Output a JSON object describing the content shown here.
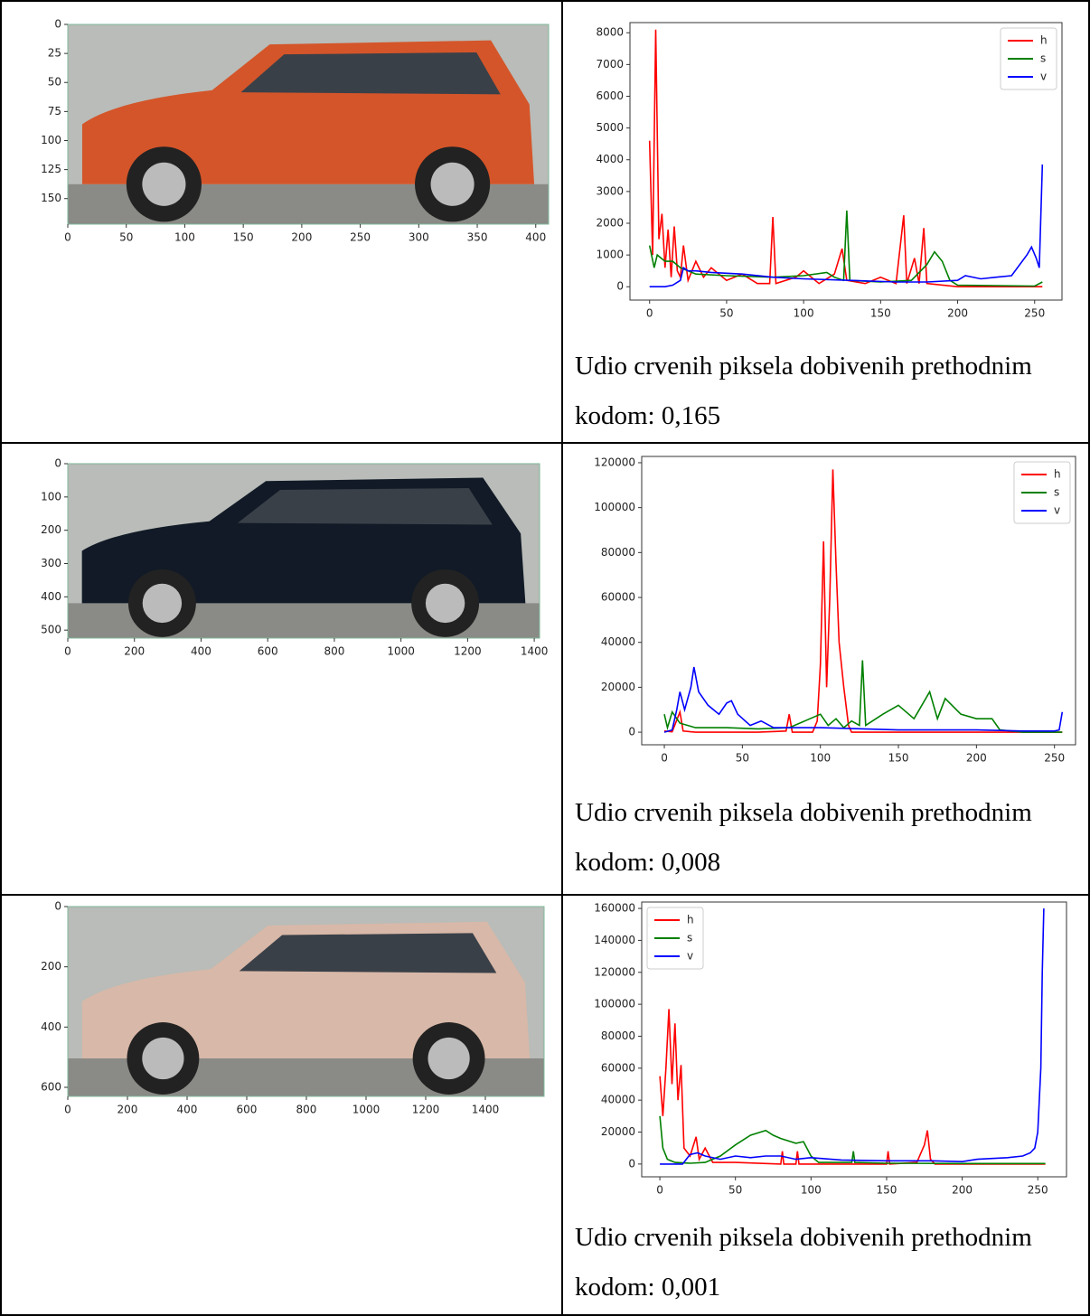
{
  "chart_data": [
    {
      "type": "image",
      "color": "#d4552a",
      "xlim": [
        0,
        411
      ],
      "ylim": [
        172,
        0
      ],
      "xticks": [
        0,
        50,
        100,
        150,
        200,
        250,
        300,
        350,
        400
      ],
      "yticks": [
        0,
        25,
        50,
        75,
        100,
        125,
        150
      ]
    },
    {
      "type": "line",
      "legend": "upper right",
      "xlim": [
        -12.75,
        267.75
      ],
      "ylim": [
        -420,
        8320
      ],
      "xticks": [
        0,
        50,
        100,
        150,
        200,
        250
      ],
      "yticks": [
        0,
        1000,
        2000,
        3000,
        4000,
        5000,
        6000,
        7000,
        8000
      ],
      "series": [
        {
          "name": "h",
          "color": "#ff0000",
          "x": [
            0,
            2,
            4,
            6,
            8,
            10,
            12,
            14,
            16,
            18,
            20,
            22,
            25,
            30,
            35,
            40,
            50,
            60,
            70,
            78,
            80,
            82,
            95,
            100,
            110,
            120,
            125,
            128,
            140,
            150,
            160,
            165,
            167,
            172,
            175,
            178,
            180,
            200,
            255
          ],
          "values": [
            4600,
            1000,
            8100,
            1500,
            2300,
            600,
            1800,
            300,
            1900,
            500,
            300,
            1300,
            200,
            800,
            300,
            600,
            200,
            400,
            100,
            100,
            2200,
            100,
            300,
            500,
            100,
            400,
            1200,
            200,
            100,
            300,
            100,
            2250,
            100,
            900,
            100,
            1850,
            100,
            0,
            0
          ]
        },
        {
          "name": "s",
          "color": "#008000",
          "x": [
            0,
            3,
            5,
            10,
            15,
            20,
            30,
            50,
            80,
            100,
            115,
            120,
            126,
            128,
            130,
            150,
            170,
            180,
            185,
            190,
            195,
            200,
            250,
            255
          ],
          "values": [
            1300,
            600,
            1000,
            800,
            800,
            600,
            400,
            350,
            300,
            350,
            450,
            300,
            200,
            2400,
            200,
            150,
            200,
            700,
            1100,
            800,
            200,
            50,
            20,
            150
          ]
        },
        {
          "name": "v",
          "color": "#0000ff",
          "x": [
            0,
            10,
            15,
            20,
            22,
            25,
            30,
            40,
            60,
            80,
            100,
            130,
            160,
            180,
            200,
            205,
            215,
            225,
            235,
            245,
            248,
            251,
            253,
            255
          ],
          "values": [
            0,
            0,
            50,
            200,
            600,
            500,
            500,
            450,
            400,
            300,
            250,
            200,
            150,
            150,
            200,
            350,
            250,
            300,
            350,
            1000,
            1250,
            900,
            600,
            3850
          ]
        }
      ]
    },
    {
      "type": "image",
      "color": "#111a26",
      "xlim": [
        0,
        1416
      ],
      "ylim": [
        524,
        0
      ],
      "xticks": [
        0,
        200,
        400,
        600,
        800,
        1000,
        1200,
        1400
      ],
      "yticks": [
        0,
        100,
        200,
        300,
        400,
        500
      ]
    },
    {
      "type": "line",
      "legend": "upper right",
      "xlim": [
        -14.5,
        263.5
      ],
      "ylim": [
        -5600,
        122800
      ],
      "xticks": [
        0,
        50,
        100,
        150,
        200,
        250
      ],
      "yticks": [
        0,
        20000,
        40000,
        60000,
        80000,
        100000,
        120000
      ],
      "series": [
        {
          "name": "h",
          "color": "#ff0000",
          "x": [
            0,
            5,
            10,
            12,
            20,
            60,
            78,
            80,
            82,
            95,
            98,
            100,
            102,
            104,
            106,
            108,
            110,
            112,
            115,
            118,
            120,
            255
          ],
          "values": [
            500,
            200,
            9000,
            500,
            0,
            0,
            500,
            8000,
            0,
            0,
            5000,
            30000,
            85000,
            20000,
            60000,
            117000,
            75000,
            40000,
            20000,
            3000,
            0,
            0
          ]
        },
        {
          "name": "s",
          "color": "#008000",
          "x": [
            0,
            2,
            5,
            10,
            20,
            40,
            60,
            80,
            90,
            100,
            105,
            110,
            115,
            120,
            125,
            127,
            129,
            140,
            150,
            160,
            170,
            175,
            180,
            190,
            200,
            210,
            215,
            230,
            255
          ],
          "values": [
            8000,
            2000,
            9000,
            4000,
            2000,
            2000,
            1500,
            2000,
            5000,
            8000,
            3000,
            6000,
            2000,
            5000,
            3000,
            32000,
            3000,
            8000,
            12000,
            6000,
            18000,
            6000,
            15000,
            8000,
            6000,
            6000,
            1000,
            0,
            0
          ]
        },
        {
          "name": "v",
          "color": "#0000ff",
          "x": [
            0,
            5,
            8,
            10,
            13,
            17,
            19,
            22,
            28,
            35,
            40,
            43,
            47,
            55,
            62,
            70,
            80,
            100,
            150,
            200,
            230,
            250,
            253,
            255
          ],
          "values": [
            0,
            1000,
            10000,
            18000,
            10000,
            20000,
            29000,
            18000,
            12000,
            8000,
            13000,
            14000,
            8000,
            3000,
            5000,
            2000,
            2000,
            2000,
            1000,
            1000,
            500,
            500,
            1000,
            9000
          ]
        }
      ]
    },
    {
      "type": "image",
      "color": "#d8b8a8",
      "xlim": [
        0,
        1597
      ],
      "ylim": [
        630,
        0
      ],
      "xticks": [
        0,
        200,
        400,
        600,
        800,
        1000,
        1200,
        1400
      ],
      "yticks": [
        0,
        200,
        400,
        600
      ]
    },
    {
      "type": "line",
      "legend": "upper left",
      "xlim": [
        -12,
        269
      ],
      "ylim": [
        -8000,
        164000
      ],
      "xticks": [
        0,
        50,
        100,
        150,
        200,
        250
      ],
      "yticks": [
        0,
        20000,
        40000,
        60000,
        80000,
        100000,
        120000,
        140000,
        160000
      ],
      "series": [
        {
          "name": "h",
          "color": "#ff0000",
          "x": [
            0,
            2,
            4,
            6,
            8,
            10,
            12,
            14,
            16,
            20,
            24,
            26,
            30,
            35,
            50,
            80,
            81,
            82,
            90,
            91,
            92,
            150,
            151,
            152,
            170,
            175,
            177,
            179,
            182,
            255
          ],
          "values": [
            55000,
            30000,
            60000,
            97000,
            50000,
            88000,
            40000,
            62000,
            10000,
            5000,
            17000,
            3000,
            10000,
            1000,
            1000,
            0,
            8000,
            0,
            0,
            8000,
            0,
            0,
            8000,
            0,
            1000,
            12000,
            21000,
            3000,
            0,
            0
          ]
        },
        {
          "name": "s",
          "color": "#008000",
          "x": [
            0,
            2,
            5,
            10,
            20,
            30,
            40,
            50,
            60,
            70,
            75,
            80,
            90,
            95,
            100,
            105,
            127,
            128,
            129,
            150,
            200,
            255
          ],
          "values": [
            30000,
            10000,
            3000,
            1000,
            500,
            1000,
            5000,
            12000,
            18000,
            21000,
            18000,
            16000,
            13000,
            14000,
            5000,
            1000,
            1000,
            8000,
            1000,
            500,
            300,
            300
          ]
        },
        {
          "name": "v",
          "color": "#0000ff",
          "x": [
            0,
            15,
            20,
            25,
            30,
            40,
            50,
            60,
            70,
            80,
            90,
            100,
            120,
            150,
            180,
            200,
            210,
            230,
            240,
            245,
            248,
            250,
            252,
            253,
            254
          ],
          "values": [
            0,
            0,
            6000,
            7000,
            5000,
            3000,
            5000,
            4000,
            5000,
            5000,
            3000,
            4000,
            2500,
            2000,
            2000,
            1500,
            3000,
            4000,
            5000,
            7000,
            10000,
            20000,
            60000,
            120000,
            160000
          ]
        }
      ]
    }
  ],
  "captions": [
    "Udio crvenih piksela dobivenih prethodnim kodom: 0,165",
    "Udio crvenih piksela dobivenih prethodnim kodom: 0,008",
    "Udio crvenih piksela dobivenih prethodnim kodom: 0,001"
  ]
}
